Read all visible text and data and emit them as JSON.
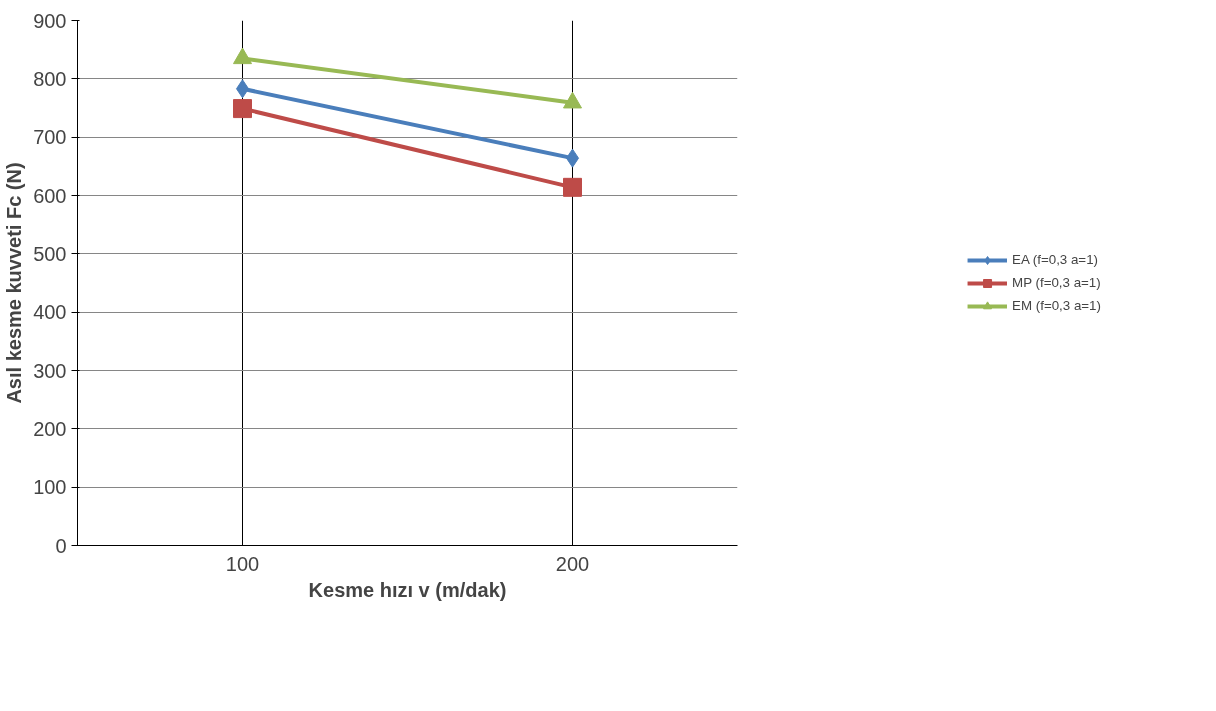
{
  "chart_data": {
    "type": "line",
    "xlabel": "Kesme hızı v (m/dak)",
    "ylabel": "Asıl kesme kuvveti Fc (N)",
    "categories": [
      "100",
      "200"
    ],
    "series": [
      {
        "name": "EA (f=0,3 a=1)",
        "color": "#4a7ebb",
        "values": [
          783,
          664
        ],
        "marker": "diamond"
      },
      {
        "name": "MP (f=0,3 a=1)",
        "color": "#be4b48",
        "values": [
          749,
          614
        ],
        "marker": "square"
      },
      {
        "name": "EM (f=0,3 a=1)",
        "color": "#98b954",
        "values": [
          835,
          759
        ],
        "marker": "triangle"
      }
    ],
    "ylim": [
      0,
      900
    ],
    "yticks": [
      0,
      100,
      200,
      300,
      400,
      500,
      600,
      700,
      800,
      900
    ],
    "grid": true,
    "legend": "right",
    "line_style": "solid"
  }
}
